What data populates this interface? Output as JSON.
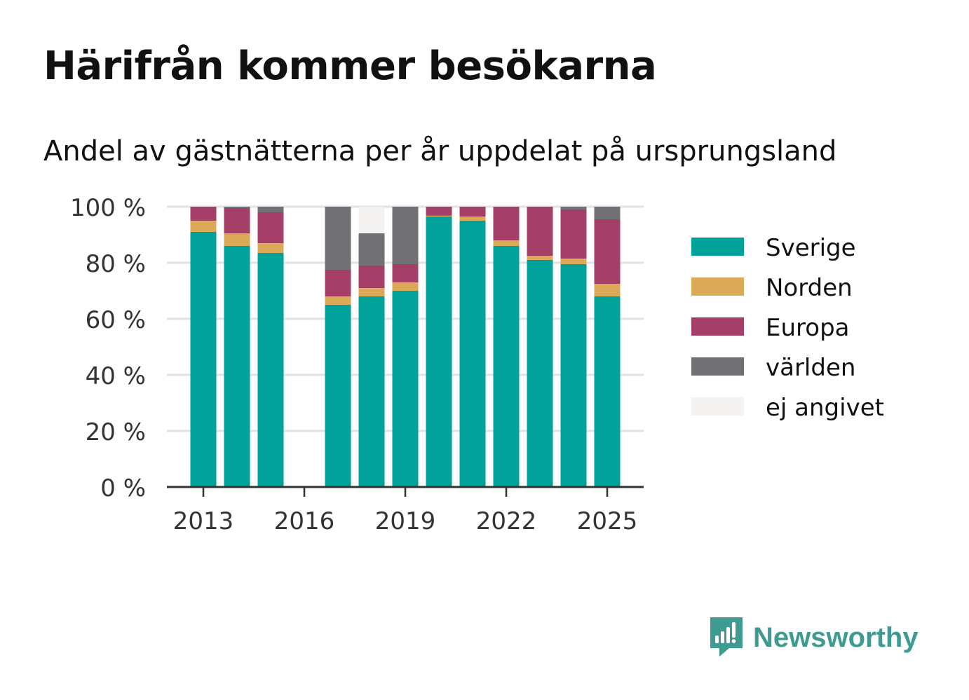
{
  "header": {
    "title": "Härifrån kommer besökarna",
    "subtitle": "Andel av gästnätterna per år uppdelat på ursprungsland"
  },
  "brand": {
    "name": "Newsworthy",
    "icon": "newsworthy-logo-icon",
    "color": "#3f9a92"
  },
  "chart_data": {
    "type": "bar",
    "stacked": true,
    "title": "Härifrån kommer besökarna",
    "subtitle": "Andel av gästnätterna per år uppdelat på ursprungsland",
    "xlabel": "",
    "ylabel": "",
    "ylim": [
      0,
      100
    ],
    "yticks": [
      0,
      20,
      40,
      60,
      80,
      100
    ],
    "ytick_labels": [
      "0 %",
      "20 %",
      "40 %",
      "60 %",
      "80 %",
      "100 %"
    ],
    "xticks": [
      2013,
      2016,
      2019,
      2022,
      2025
    ],
    "xtick_labels": [
      "2013",
      "2016",
      "2019",
      "2022",
      "2025"
    ],
    "grid": true,
    "legend_position": "right",
    "categories": [
      2013,
      2014,
      2015,
      2016,
      2017,
      2018,
      2019,
      2020,
      2021,
      2022,
      2023,
      2024,
      2025
    ],
    "series": [
      {
        "name": "Sverige",
        "color": "#00a29a",
        "values": [
          91,
          86,
          83.5,
          0,
          65,
          68,
          70,
          96.5,
          95,
          86,
          81,
          79.5,
          68
        ]
      },
      {
        "name": "Norden",
        "color": "#dbaa58",
        "values": [
          4,
          4.5,
          3.5,
          0,
          3,
          3,
          3,
          0.3,
          1.5,
          2,
          1.5,
          2,
          4.5
        ]
      },
      {
        "name": "Europa",
        "color": "#a53f68",
        "values": [
          5,
          9,
          11,
          0,
          9.5,
          8,
          6.5,
          3.2,
          3.5,
          12,
          17.5,
          17.5,
          23
        ]
      },
      {
        "name": "världen",
        "color": "#717075",
        "values": [
          0,
          0.5,
          2,
          0,
          22.5,
          11.5,
          20.5,
          0,
          0,
          0,
          0,
          1,
          4.5
        ]
      },
      {
        "name": "ej angivet",
        "color": "#f4f3f1",
        "values": [
          0,
          0,
          0,
          0,
          0,
          9.5,
          0,
          0,
          0,
          0,
          0,
          0,
          0
        ]
      }
    ]
  }
}
